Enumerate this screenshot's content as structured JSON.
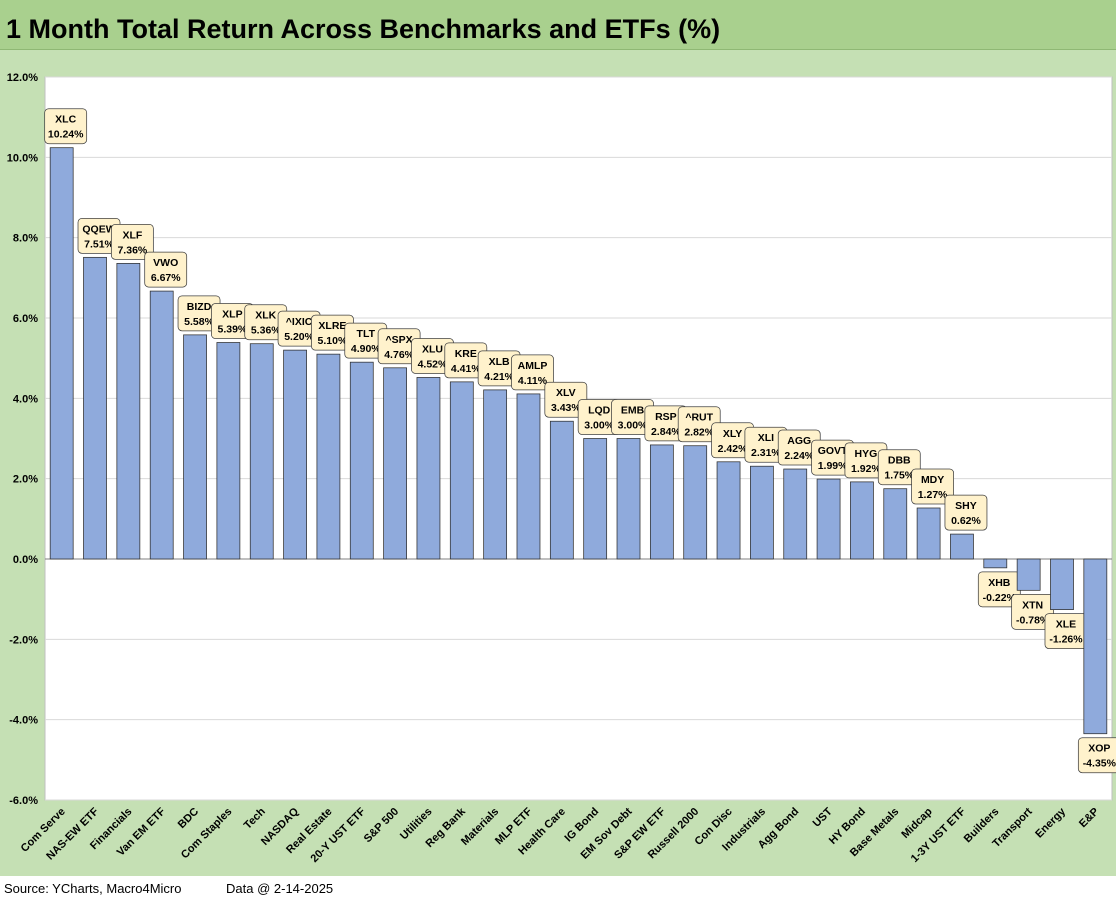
{
  "page": {
    "title": "1 Month Total Return Across Benchmarks and ETFs (%)",
    "source": "Source: YCharts, Macro4Micro",
    "data_date": "Data @ 2-14-2025"
  },
  "colors": {
    "title_bg": "#a9d08e",
    "panel_bg": "#c5e0b4",
    "plot_bg": "#ffffff",
    "bar_fill": "#8faadc",
    "bar_stroke": "#2f2f2f",
    "label_bg": "#fff2cc",
    "gridline": "#d9d9d9"
  },
  "chart_data": {
    "type": "bar",
    "title": "1 Month Total Return Across Benchmarks and ETFs (%)",
    "ylim": [
      -6,
      12
    ],
    "yticks": [
      -6,
      -4,
      -2,
      0,
      2,
      4,
      6,
      8,
      10,
      12
    ],
    "ytick_labels": [
      "-6.0%",
      "-4.0%",
      "-2.0%",
      "0.0%",
      "2.0%",
      "4.0%",
      "6.0%",
      "8.0%",
      "10.0%",
      "12.0%"
    ],
    "grid": true,
    "legend": "none",
    "categories": [
      "Com Serve",
      "NAS-EW ETF",
      "Financials",
      "Van EM ETF",
      "BDC",
      "Com Staples",
      "Tech",
      "NASDAQ",
      "Real Estate",
      "20-Y UST ETF",
      "S&P 500",
      "Utilities",
      "Reg Bank",
      "Materials",
      "MLP ETF",
      "Health Care",
      "IG Bond",
      "EM Sov Debt",
      "S&P EW ETF",
      "Russell 2000",
      "Con Disc",
      "Industrials",
      "Agg Bond",
      "UST",
      "HY Bond",
      "Base Metals",
      "Midcap",
      "1-3Y UST ETF",
      "Builders",
      "Transport",
      "Energy",
      "E&P"
    ],
    "tickers": [
      "XLC",
      "QQEW",
      "XLF",
      "VWO",
      "BIZD",
      "XLP",
      "XLK",
      "^IXIC",
      "XLRE",
      "TLT",
      "^SPX",
      "XLU",
      "KRE",
      "XLB",
      "AMLP",
      "XLV",
      "LQD",
      "EMB",
      "RSP",
      "^RUT",
      "XLY",
      "XLI",
      "AGG",
      "GOVT",
      "HYG",
      "DBB",
      "MDY",
      "SHY",
      "XHB",
      "XTN",
      "XLE",
      "XOP"
    ],
    "value_labels": [
      "10.24%",
      "7.51%",
      "7.36%",
      "6.67%",
      "5.58%",
      "5.39%",
      "5.36%",
      "5.20%",
      "5.10%",
      "4.90%",
      "4.76%",
      "4.52%",
      "4.41%",
      "4.21%",
      "4.11%",
      "3.43%",
      "3.00%",
      "3.00%",
      "2.84%",
      "2.82%",
      "2.42%",
      "2.31%",
      "2.24%",
      "1.99%",
      "1.92%",
      "1.75%",
      "1.27%",
      "0.62%",
      "-0.22%",
      "-0.78%",
      "-1.26%",
      "-4.35%"
    ],
    "values": [
      10.24,
      7.51,
      7.36,
      6.67,
      5.58,
      5.39,
      5.36,
      5.2,
      5.1,
      4.9,
      4.76,
      4.52,
      4.41,
      4.21,
      4.11,
      3.43,
      3.0,
      3.0,
      2.84,
      2.82,
      2.42,
      2.31,
      2.24,
      1.99,
      1.92,
      1.75,
      1.27,
      0.62,
      -0.22,
      -0.78,
      -1.26,
      -4.35
    ]
  }
}
